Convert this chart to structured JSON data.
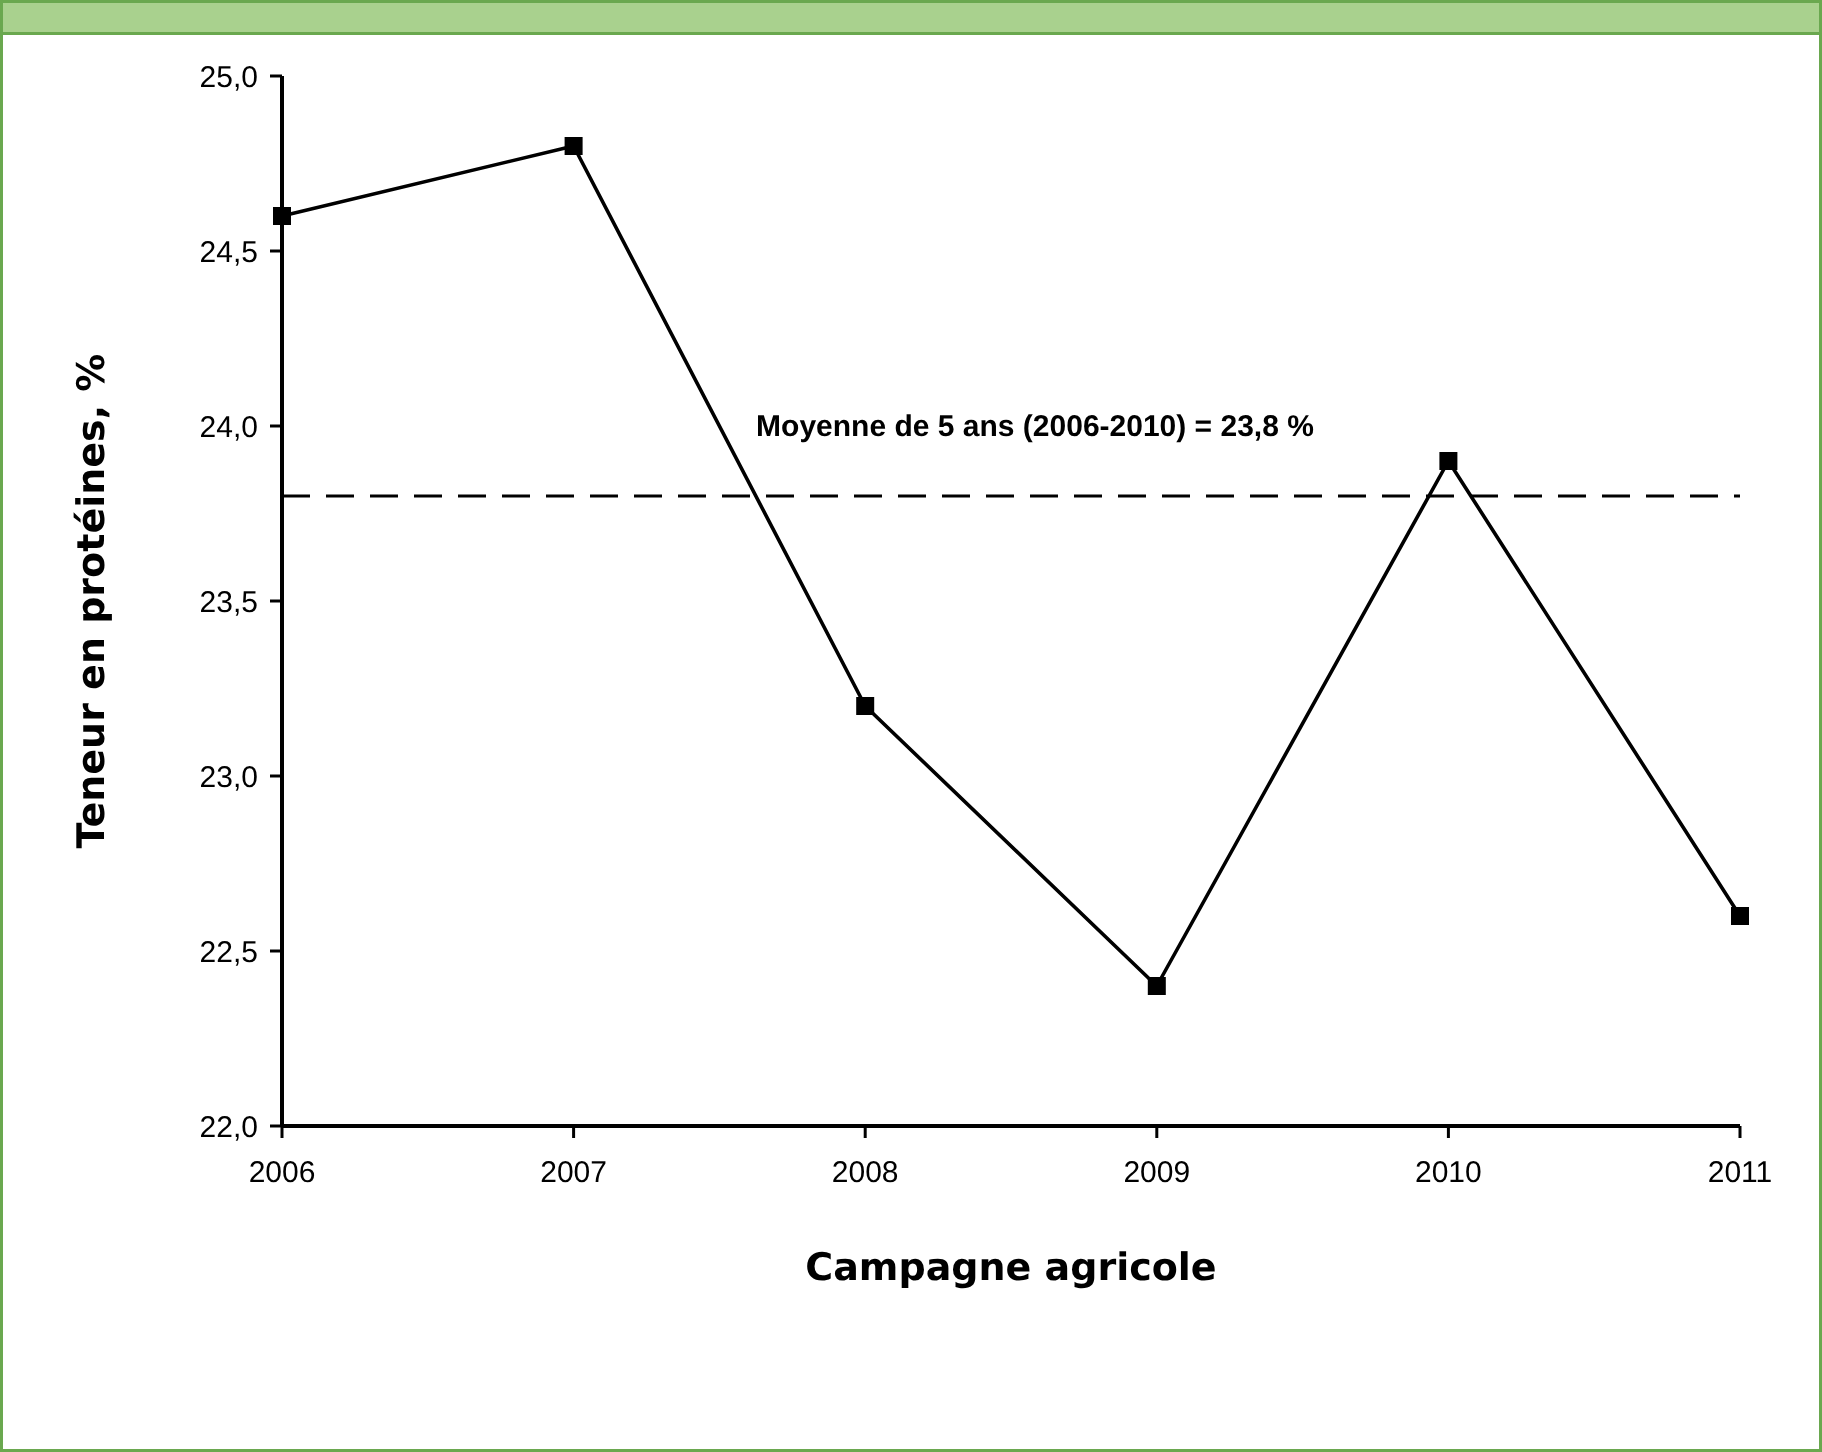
{
  "chart_data": {
    "type": "line",
    "xlabel": "Campagne agricole",
    "ylabel": "Teneur en protéines, %",
    "x": [
      2006,
      2007,
      2008,
      2009,
      2010,
      2011
    ],
    "series": [
      {
        "color": "#000000",
        "values": [
          24.6,
          24.8,
          23.2,
          22.4,
          23.9,
          22.6
        ]
      }
    ],
    "xlim": [
      2006,
      2011
    ],
    "xticks": [
      2006,
      2007,
      2008,
      2009,
      2010,
      2011
    ],
    "ylim": [
      22,
      25
    ],
    "yticks": [
      {
        "value": 22,
        "label": "22,0"
      },
      {
        "value": 22.5,
        "label": "22,5"
      },
      {
        "value": 23,
        "label": "23,0"
      },
      {
        "value": 23.5,
        "label": "23,5"
      },
      {
        "value": 24,
        "label": "24,0"
      },
      {
        "value": 24.5,
        "label": "24,5"
      },
      {
        "value": 25,
        "label": "25,0"
      }
    ],
    "ref_lines": [
      {
        "axis": "y",
        "value": 23.8,
        "label": "Moyenne de 5 ans (2006-2010) = 23,8 %",
        "color": "#000000",
        "line_style": "dashed"
      }
    ],
    "marker": "square",
    "line_style": "solid"
  }
}
